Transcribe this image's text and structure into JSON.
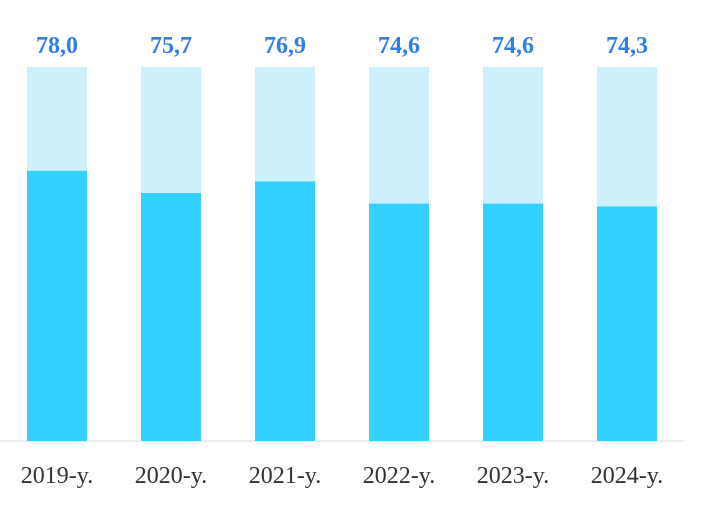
{
  "chart_data": {
    "type": "bar",
    "categories": [
      "2019-y.",
      "2020-y.",
      "2021-y.",
      "2022-y.",
      "2023-y.",
      "2024-y."
    ],
    "values": [
      78.0,
      75.7,
      76.9,
      74.6,
      74.6,
      74.3
    ],
    "value_labels": [
      "78,0",
      "75,7",
      "76,9",
      "74,6",
      "74,6",
      "74,3"
    ],
    "max": 100,
    "colors": {
      "bar_fill": "#33d1ff",
      "bar_background": "#ccf1fc",
      "value_label": "#2f7fe6",
      "axis": "#d9d9d9",
      "category_label": "#333333"
    }
  }
}
